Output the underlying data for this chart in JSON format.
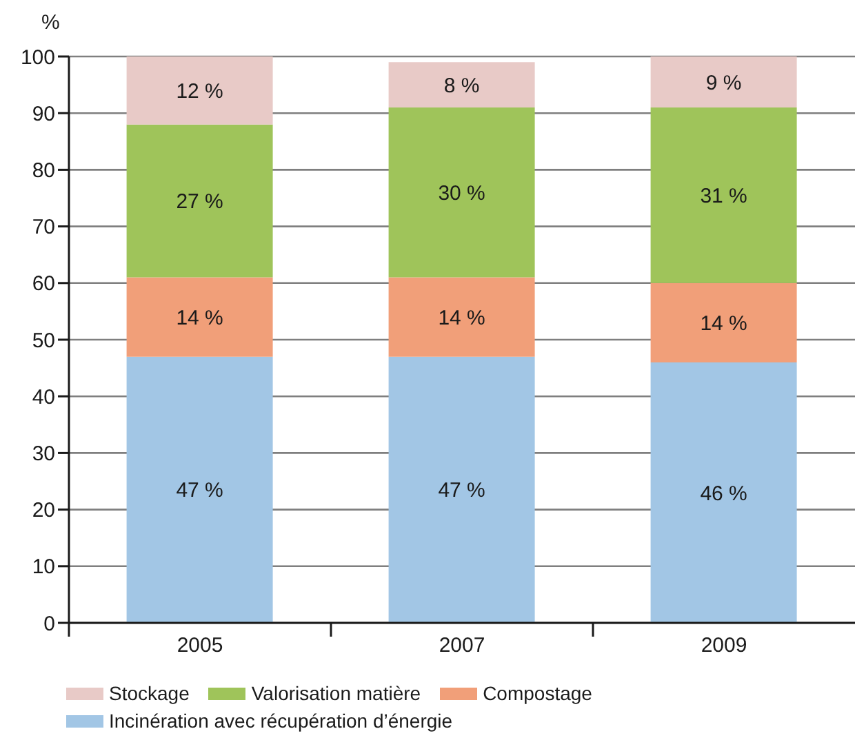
{
  "chart_data": {
    "type": "bar",
    "stacked": true,
    "ylabel": "%",
    "categories": [
      "2005",
      "2007",
      "2009"
    ],
    "series": [
      {
        "name": "Incinération avec récupération d’énergie",
        "color": "#a2c6e5",
        "values": [
          47,
          47,
          46
        ],
        "value_labels": [
          "47 %",
          "47 %",
          "46 %"
        ]
      },
      {
        "name": "Compostage",
        "color": "#f19f79",
        "values": [
          14,
          14,
          14
        ],
        "value_labels": [
          "14 %",
          "14 %",
          "14 %"
        ]
      },
      {
        "name": "Valorisation matière",
        "color": "#9fc45a",
        "values": [
          27,
          30,
          31
        ],
        "value_labels": [
          "27 %",
          "30 %",
          "31 %"
        ]
      },
      {
        "name": "Stockage",
        "color": "#e8cac7",
        "values": [
          12,
          8,
          9
        ],
        "value_labels": [
          "12 %",
          "8 %",
          "9 %"
        ]
      }
    ],
    "ylim": [
      0,
      100
    ],
    "yticks": [
      0,
      10,
      20,
      30,
      40,
      50,
      60,
      70,
      80,
      90,
      100
    ],
    "grid": "y",
    "legend": "bottom"
  }
}
